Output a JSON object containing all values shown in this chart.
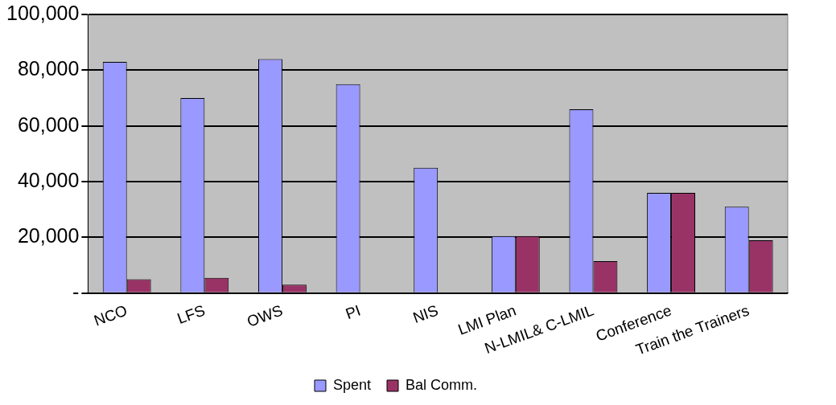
{
  "chart_data": {
    "type": "bar",
    "categories": [
      "NCO",
      "LFS",
      "OWS",
      "PI",
      "NIS",
      "LMI Plan",
      "N-LMIL& C-LMIL",
      "Conference",
      "Train the Trainers"
    ],
    "series": [
      {
        "name": "Spent",
        "color": "#9999ff",
        "values": [
          83000,
          70000,
          84000,
          75000,
          45000,
          20500,
          66000,
          36000,
          31000
        ]
      },
      {
        "name": "Bal Comm.",
        "color": "#993366",
        "values": [
          5000,
          5500,
          3000,
          0,
          0,
          20500,
          11500,
          36000,
          19000
        ]
      }
    ],
    "ylim": [
      0,
      100000
    ],
    "yticks": [
      {
        "value": 0,
        "label": "-"
      },
      {
        "value": 20000,
        "label": "20,000"
      },
      {
        "value": 40000,
        "label": "40,000"
      },
      {
        "value": 60000,
        "label": "60,000"
      },
      {
        "value": 80000,
        "label": "80,000"
      },
      {
        "value": 100000,
        "label": "100,000"
      }
    ],
    "grid": "y",
    "legend": "bottom"
  }
}
